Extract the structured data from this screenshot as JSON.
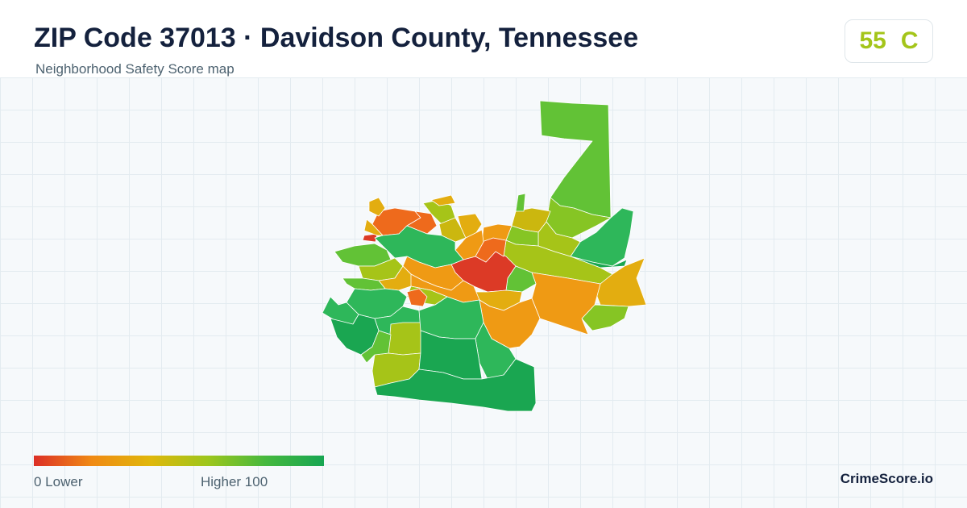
{
  "header": {
    "title": "ZIP Code 37013 · Davidson County, Tennessee",
    "subtitle": "Neighborhood Safety Score map"
  },
  "score": {
    "value": "55",
    "grade": "C",
    "color": "#a4c51a"
  },
  "legend": {
    "min_label": "0  Lower",
    "max_label": "Higher  100",
    "colors": [
      "#dc2f26",
      "#f08a14",
      "#e0b70b",
      "#9dc61c",
      "#45b83e",
      "#17a652"
    ]
  },
  "brand": "CrimeScore.io",
  "palette": {
    "red": "#dc3a26",
    "orange_red": "#ee6a1c",
    "orange": "#ef9a14",
    "amber": "#e3ad10",
    "yellow": "#cbb70f",
    "yellow_green": "#a6c418",
    "lime": "#86c524",
    "light_green": "#62c236",
    "green": "#2eb75a",
    "dark_green": "#1aa651"
  }
}
